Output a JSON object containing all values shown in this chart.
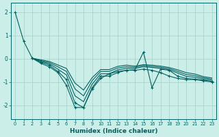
{
  "xlabel": "Humidex (Indice chaleur)",
  "bg_color": "#cceee8",
  "grid_color": "#aad4cc",
  "line_color": "#006060",
  "xlim": [
    -0.5,
    23.5
  ],
  "ylim": [
    -2.6,
    2.4
  ],
  "yticks": [
    -2,
    -1,
    0,
    1,
    2
  ],
  "xticks": [
    0,
    1,
    2,
    3,
    4,
    5,
    6,
    7,
    8,
    9,
    10,
    11,
    12,
    13,
    14,
    15,
    16,
    17,
    18,
    19,
    20,
    21,
    22,
    23
  ],
  "series": [
    {
      "x": [
        0,
        1,
        2,
        3,
        4,
        5,
        6,
        7,
        8,
        9,
        10,
        11,
        12,
        13,
        14,
        15,
        16,
        17,
        18,
        19,
        20,
        21,
        22,
        23
      ],
      "y": [
        2.0,
        0.75,
        0.02,
        -0.2,
        -0.35,
        -0.6,
        -1.15,
        -2.1,
        -2.1,
        -1.3,
        -0.85,
        -0.65,
        -0.55,
        -0.5,
        -0.5,
        -0.45,
        -0.5,
        -0.6,
        -0.75,
        -0.85,
        -0.9,
        -0.9,
        -0.95,
        -1.0
      ],
      "marker": "+"
    },
    {
      "x": [
        2,
        3,
        4,
        5,
        6,
        7,
        8,
        9,
        10,
        11,
        12,
        13,
        14,
        15,
        16,
        17,
        18,
        19,
        20,
        21,
        22,
        23
      ],
      "y": [
        0.02,
        -0.15,
        -0.28,
        -0.55,
        -0.9,
        -1.9,
        -2.1,
        -1.25,
        -0.75,
        -0.75,
        -0.6,
        -0.5,
        -0.48,
        0.28,
        -1.25,
        -0.45,
        -0.5,
        -0.75,
        -0.85,
        -0.88,
        -0.92,
        -0.98
      ],
      "marker": "+"
    },
    {
      "x": [
        2,
        3,
        4,
        5,
        6,
        7,
        8,
        9,
        10,
        11,
        12,
        13,
        14,
        15,
        16,
        17,
        18,
        19,
        20,
        21,
        22,
        23
      ],
      "y": [
        0.02,
        -0.12,
        -0.22,
        -0.45,
        -0.7,
        -1.6,
        -1.85,
        -1.1,
        -0.65,
        -0.65,
        -0.48,
        -0.42,
        -0.42,
        -0.35,
        -0.38,
        -0.42,
        -0.48,
        -0.62,
        -0.76,
        -0.8,
        -0.87,
        -0.93
      ],
      "marker": null
    },
    {
      "x": [
        2,
        3,
        4,
        5,
        6,
        7,
        8,
        9,
        10,
        11,
        12,
        13,
        14,
        15,
        16,
        17,
        18,
        19,
        20,
        21,
        22,
        23
      ],
      "y": [
        0.02,
        -0.08,
        -0.17,
        -0.35,
        -0.55,
        -1.3,
        -1.6,
        -0.95,
        -0.55,
        -0.55,
        -0.4,
        -0.35,
        -0.37,
        -0.3,
        -0.33,
        -0.37,
        -0.43,
        -0.55,
        -0.68,
        -0.73,
        -0.82,
        -0.88
      ],
      "marker": null
    },
    {
      "x": [
        2,
        3,
        4,
        5,
        6,
        7,
        8,
        9,
        10,
        11,
        12,
        13,
        14,
        15,
        16,
        17,
        18,
        19,
        20,
        21,
        22,
        23
      ],
      "y": [
        0.02,
        -0.05,
        -0.12,
        -0.27,
        -0.42,
        -1.05,
        -1.35,
        -0.82,
        -0.47,
        -0.47,
        -0.33,
        -0.28,
        -0.32,
        -0.26,
        -0.28,
        -0.32,
        -0.38,
        -0.48,
        -0.6,
        -0.66,
        -0.77,
        -0.83
      ],
      "marker": null
    }
  ]
}
